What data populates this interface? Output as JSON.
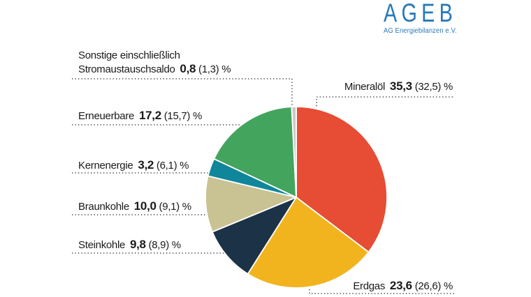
{
  "logo": {
    "title": "AGEB",
    "subtitle": "AG Energiebilanzen e.V.",
    "color": "#2878b8"
  },
  "chart_data": {
    "type": "pie",
    "unit": "%",
    "start_angle": "top",
    "direction": "clockwise",
    "legend_position": "around-pie-with-dotted-leaders",
    "slices": [
      {
        "key": "mineraloel",
        "label": "Mineralöl",
        "value": 35.3,
        "value_text": "35,3",
        "prev_text": "(32,5)",
        "suffix": "%",
        "color": "#e74c34"
      },
      {
        "key": "erdgas",
        "label": "Erdgas",
        "value": 23.6,
        "value_text": "23,6",
        "prev_text": "(26,6)",
        "suffix": "%",
        "color": "#f2b41e"
      },
      {
        "key": "steinkohle",
        "label": "Steinkohle",
        "value": 9.8,
        "value_text": "9,8",
        "prev_text": "(8,9)",
        "suffix": "%",
        "color": "#1c3347"
      },
      {
        "key": "braunkohle",
        "label": "Braunkohle",
        "value": 10.0,
        "value_text": "10,0",
        "prev_text": "(9,1)",
        "suffix": "%",
        "color": "#c9c292"
      },
      {
        "key": "kernenergie",
        "label": "Kernenergie",
        "value": 3.2,
        "value_text": "3,2",
        "prev_text": "(6,1)",
        "suffix": "%",
        "color": "#10869a"
      },
      {
        "key": "erneuerbare",
        "label": "Erneuerbare",
        "value": 17.2,
        "value_text": "17,2",
        "prev_text": "(15,7)",
        "suffix": "%",
        "color": "#43a45e"
      },
      {
        "key": "sonstige",
        "label": "Sonstige einschließlich Stromaustauschsaldo",
        "label_line1": "Sonstige einschließlich",
        "label_line2": "Stromaustauschsaldo",
        "value": 0.8,
        "value_text": "0,8",
        "prev_text": "(1,3)",
        "suffix": "%",
        "color": "#c9c9c9"
      }
    ]
  }
}
